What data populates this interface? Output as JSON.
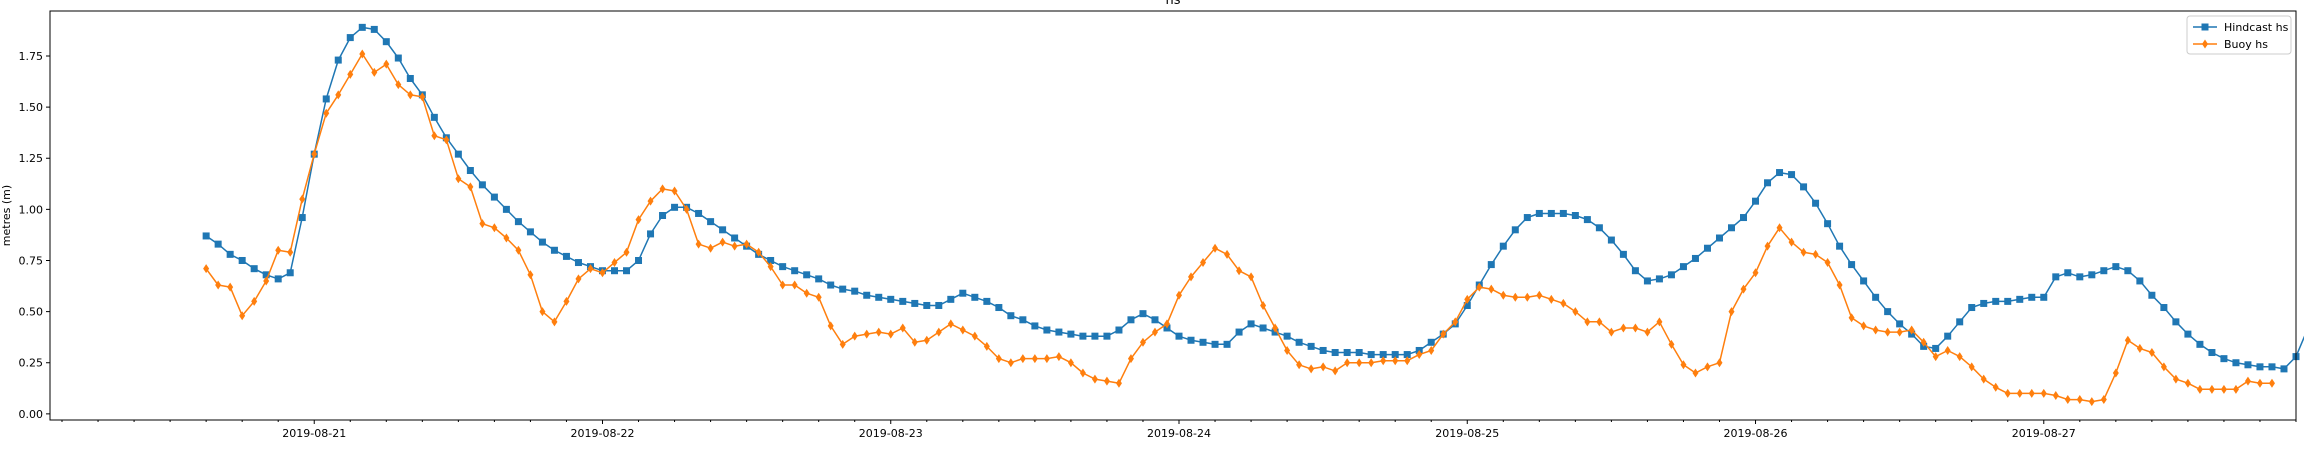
{
  "chart_data": {
    "type": "line",
    "title": "hs",
    "xlabel": "",
    "ylabel": "metres (m)",
    "ylim": [
      -0.03,
      1.97
    ],
    "xlim": [
      "2019-08-20 02:00",
      "2019-08-27 21:00"
    ],
    "x_ticks": [
      "2019-08-21",
      "2019-08-22",
      "2019-08-23",
      "2019-08-24",
      "2019-08-25",
      "2019-08-26",
      "2019-08-27"
    ],
    "y_ticks": [
      "0.00",
      "0.25",
      "0.50",
      "0.75",
      "1.00",
      "1.25",
      "1.50",
      "1.75"
    ],
    "grid": false,
    "legend": "top-right",
    "x_start": "2019-08-20 15:00",
    "x_step_hours": 1,
    "series": [
      {
        "name": "Hindcast hs",
        "color": "#1f77b4",
        "marker": "square",
        "values": [
          0.87,
          0.83,
          0.78,
          0.75,
          0.71,
          0.68,
          0.66,
          0.69,
          0.96,
          1.27,
          1.54,
          1.73,
          1.84,
          1.89,
          1.88,
          1.82,
          1.74,
          1.64,
          1.56,
          1.45,
          1.35,
          1.27,
          1.19,
          1.12,
          1.06,
          1.0,
          0.94,
          0.89,
          0.84,
          0.8,
          0.77,
          0.74,
          0.72,
          0.7,
          0.7,
          0.7,
          0.75,
          0.88,
          0.97,
          1.01,
          1.01,
          0.98,
          0.94,
          0.9,
          0.86,
          0.82,
          0.78,
          0.75,
          0.72,
          0.7,
          0.68,
          0.66,
          0.63,
          0.61,
          0.6,
          0.58,
          0.57,
          0.56,
          0.55,
          0.54,
          0.53,
          0.53,
          0.56,
          0.59,
          0.57,
          0.55,
          0.52,
          0.48,
          0.46,
          0.43,
          0.41,
          0.4,
          0.39,
          0.38,
          0.38,
          0.38,
          0.41,
          0.46,
          0.49,
          0.46,
          0.42,
          0.38,
          0.36,
          0.35,
          0.34,
          0.34,
          0.4,
          0.44,
          0.42,
          0.4,
          0.38,
          0.35,
          0.33,
          0.31,
          0.3,
          0.3,
          0.3,
          0.29,
          0.29,
          0.29,
          0.29,
          0.31,
          0.35,
          0.39,
          0.44,
          0.53,
          0.63,
          0.73,
          0.82,
          0.9,
          0.96,
          0.98,
          0.98,
          0.98,
          0.97,
          0.95,
          0.91,
          0.85,
          0.78,
          0.7,
          0.65,
          0.66,
          0.68,
          0.72,
          0.76,
          0.81,
          0.86,
          0.91,
          0.96,
          1.04,
          1.13,
          1.18,
          1.17,
          1.11,
          1.03,
          0.93,
          0.82,
          0.73,
          0.65,
          0.57,
          0.5,
          0.44,
          0.39,
          0.33,
          0.32,
          0.38,
          0.45,
          0.52,
          0.54,
          0.55,
          0.55,
          0.56,
          0.57,
          0.57,
          0.67,
          0.69,
          0.67,
          0.68,
          0.7,
          0.72,
          0.7,
          0.65,
          0.58,
          0.52,
          0.45,
          0.39,
          0.34,
          0.3,
          0.27,
          0.25,
          0.24,
          0.23,
          0.23,
          0.22,
          0.28,
          0.42,
          0.46
        ]
      },
      {
        "name": "Buoy hs",
        "color": "#ff7f0e",
        "marker": "diamond",
        "values": [
          0.71,
          0.63,
          0.62,
          0.48,
          0.55,
          0.65,
          0.8,
          0.79,
          1.05,
          1.27,
          1.47,
          1.56,
          1.66,
          1.76,
          1.67,
          1.71,
          1.61,
          1.56,
          1.55,
          1.36,
          1.34,
          1.15,
          1.11,
          0.93,
          0.91,
          0.86,
          0.8,
          0.68,
          0.5,
          0.45,
          0.55,
          0.66,
          0.71,
          0.69,
          0.74,
          0.79,
          0.95,
          1.04,
          1.1,
          1.09,
          1.0,
          0.83,
          0.81,
          0.84,
          0.82,
          0.83,
          0.79,
          0.72,
          0.63,
          0.63,
          0.59,
          0.57,
          0.43,
          0.34,
          0.38,
          0.39,
          0.4,
          0.39,
          0.42,
          0.35,
          0.36,
          0.4,
          0.44,
          0.41,
          0.38,
          0.33,
          0.27,
          0.25,
          0.27,
          0.27,
          0.27,
          0.28,
          0.25,
          0.2,
          0.17,
          0.16,
          0.15,
          0.27,
          0.35,
          0.4,
          0.44,
          0.58,
          0.67,
          0.74,
          0.81,
          0.78,
          0.7,
          0.67,
          0.53,
          0.42,
          0.31,
          0.24,
          0.22,
          0.23,
          0.21,
          0.25,
          0.25,
          0.25,
          0.26,
          0.26,
          0.26,
          0.29,
          0.31,
          0.39,
          0.45,
          0.56,
          0.62,
          0.61,
          0.58,
          0.57,
          0.57,
          0.58,
          0.56,
          0.54,
          0.5,
          0.45,
          0.45,
          0.4,
          0.42,
          0.42,
          0.4,
          0.45,
          0.34,
          0.24,
          0.2,
          0.23,
          0.25,
          0.5,
          0.61,
          0.69,
          0.82,
          0.91,
          0.84,
          0.79,
          0.78,
          0.74,
          0.63,
          0.47,
          0.43,
          0.41,
          0.4,
          0.4,
          0.41,
          0.35,
          0.28,
          0.31,
          0.28,
          0.23,
          0.17,
          0.13,
          0.1,
          0.1,
          0.1,
          0.1,
          0.09,
          0.07,
          0.07,
          0.06,
          0.07,
          0.2,
          0.36,
          0.32,
          0.3,
          0.23,
          0.17,
          0.15,
          0.12,
          0.12,
          0.12,
          0.12,
          0.16,
          0.15,
          0.15
        ]
      }
    ]
  }
}
